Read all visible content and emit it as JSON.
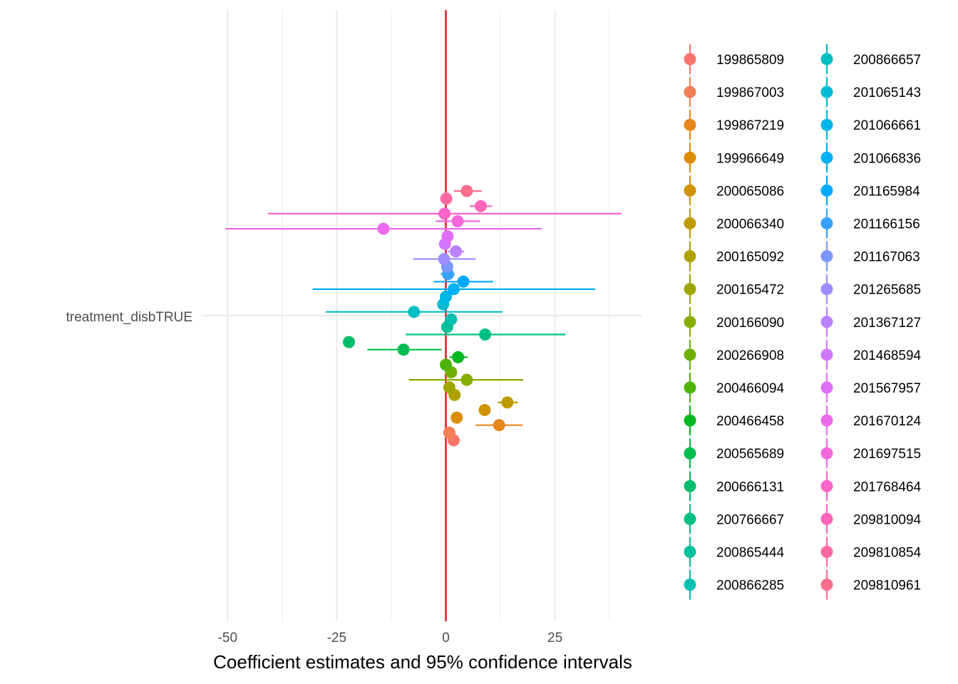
{
  "chart_data": {
    "type": "forest",
    "xlabel": "Coefficient estimates and 95% confidence intervals",
    "ylabel": "",
    "y_category": "treatment_disbTRUE",
    "x_ticks": [
      -50,
      -25,
      0,
      25
    ],
    "xlim": [
      -55,
      45
    ],
    "reference_line": {
      "x": 0,
      "color": "#e41a1c"
    },
    "legend_placement": "right",
    "series": [
      {
        "name": "199865809",
        "color": "#F8766D",
        "estimate": 1.8,
        "ci": [
          1.8,
          1.8
        ]
      },
      {
        "name": "199867003",
        "color": "#F07F53",
        "estimate": 0.8,
        "ci": [
          0.8,
          0.8
        ]
      },
      {
        "name": "199867219",
        "color": "#E7861B",
        "estimate": 12.2,
        "ci": [
          6.8,
          17.6
        ]
      },
      {
        "name": "199966649",
        "color": "#DC8E00",
        "estimate": 2.5,
        "ci": [
          2.5,
          2.5
        ]
      },
      {
        "name": "200065086",
        "color": "#CF9400",
        "estimate": 8.9,
        "ci": [
          8.9,
          8.9
        ]
      },
      {
        "name": "200066340",
        "color": "#C09B00",
        "estimate": 14.1,
        "ci": [
          11.9,
          16.5
        ]
      },
      {
        "name": "200165092",
        "color": "#B0A100",
        "estimate": 2.0,
        "ci": [
          2.0,
          2.0
        ]
      },
      {
        "name": "200165472",
        "color": "#9DA700",
        "estimate": 0.8,
        "ci": [
          0.8,
          0.8
        ]
      },
      {
        "name": "200166090",
        "color": "#88AC00",
        "estimate": 4.8,
        "ci": [
          -8.5,
          17.7
        ]
      },
      {
        "name": "200266908",
        "color": "#6FB000",
        "estimate": 1.2,
        "ci": [
          1.2,
          1.2
        ]
      },
      {
        "name": "200466094",
        "color": "#4DB400",
        "estimate": 0.0,
        "ci": [
          0.0,
          0.0
        ]
      },
      {
        "name": "200466458",
        "color": "#00B81F",
        "estimate": 2.8,
        "ci": [
          0.8,
          5.0
        ]
      },
      {
        "name": "200565689",
        "color": "#00BB4E",
        "estimate": -9.7,
        "ci": [
          -18.0,
          -1.0
        ]
      },
      {
        "name": "200666131",
        "color": "#00BD6B",
        "estimate": -22.2,
        "ci": [
          -22.2,
          -22.2
        ]
      },
      {
        "name": "200766667",
        "color": "#00BF84",
        "estimate": 9.0,
        "ci": [
          -9.2,
          27.4
        ]
      },
      {
        "name": "200865444",
        "color": "#00C09B",
        "estimate": 0.3,
        "ci": [
          0.3,
          0.3
        ]
      },
      {
        "name": "200866285",
        "color": "#00C0AF",
        "estimate": 1.2,
        "ci": [
          1.2,
          1.2
        ]
      },
      {
        "name": "200866657",
        "color": "#00BEC3",
        "estimate": -7.3,
        "ci": [
          -27.5,
          13.0
        ]
      },
      {
        "name": "201065143",
        "color": "#00BBD5",
        "estimate": -0.6,
        "ci": [
          -0.6,
          -0.6
        ]
      },
      {
        "name": "201066661",
        "color": "#00B6E6",
        "estimate": 0.0,
        "ci": [
          0.0,
          0.0
        ]
      },
      {
        "name": "201066836",
        "color": "#00B0F6",
        "estimate": 1.8,
        "ci": [
          -30.5,
          34.2
        ]
      },
      {
        "name": "201165984",
        "color": "#00A8FF",
        "estimate": 4.0,
        "ci": [
          -2.8,
          10.8
        ]
      },
      {
        "name": "201166156",
        "color": "#35A2FF",
        "estimate": 0.5,
        "ci": [
          -1.2,
          2.0
        ]
      },
      {
        "name": "201167063",
        "color": "#7C96FF",
        "estimate": 0.3,
        "ci": [
          0.3,
          0.3
        ]
      },
      {
        "name": "201265685",
        "color": "#9F8CFF",
        "estimate": -0.4,
        "ci": [
          -7.5,
          6.8
        ]
      },
      {
        "name": "201367127",
        "color": "#BA81FF",
        "estimate": 2.3,
        "ci": [
          0.5,
          4.2
        ]
      },
      {
        "name": "201468594",
        "color": "#D077FF",
        "estimate": -0.2,
        "ci": [
          -0.2,
          -0.2
        ]
      },
      {
        "name": "201567957",
        "color": "#E06FF8",
        "estimate": 0.4,
        "ci": [
          -0.8,
          1.7
        ]
      },
      {
        "name": "201670124",
        "color": "#EB6AEC",
        "estimate": -14.3,
        "ci": [
          -50.5,
          22.0
        ]
      },
      {
        "name": "201697515",
        "color": "#F566DD",
        "estimate": 2.7,
        "ci": [
          -2.3,
          7.8
        ]
      },
      {
        "name": "201768464",
        "color": "#FB64CB",
        "estimate": -0.3,
        "ci": [
          -40.8,
          40.2
        ]
      },
      {
        "name": "209810094",
        "color": "#FF65B8",
        "estimate": 8.0,
        "ci": [
          5.5,
          10.6
        ]
      },
      {
        "name": "209810854",
        "color": "#FF69A3",
        "estimate": 0.1,
        "ci": [
          0.1,
          0.1
        ]
      },
      {
        "name": "209810961",
        "color": "#FD6E8C",
        "estimate": 4.8,
        "ci": [
          1.8,
          8.2
        ]
      }
    ]
  }
}
